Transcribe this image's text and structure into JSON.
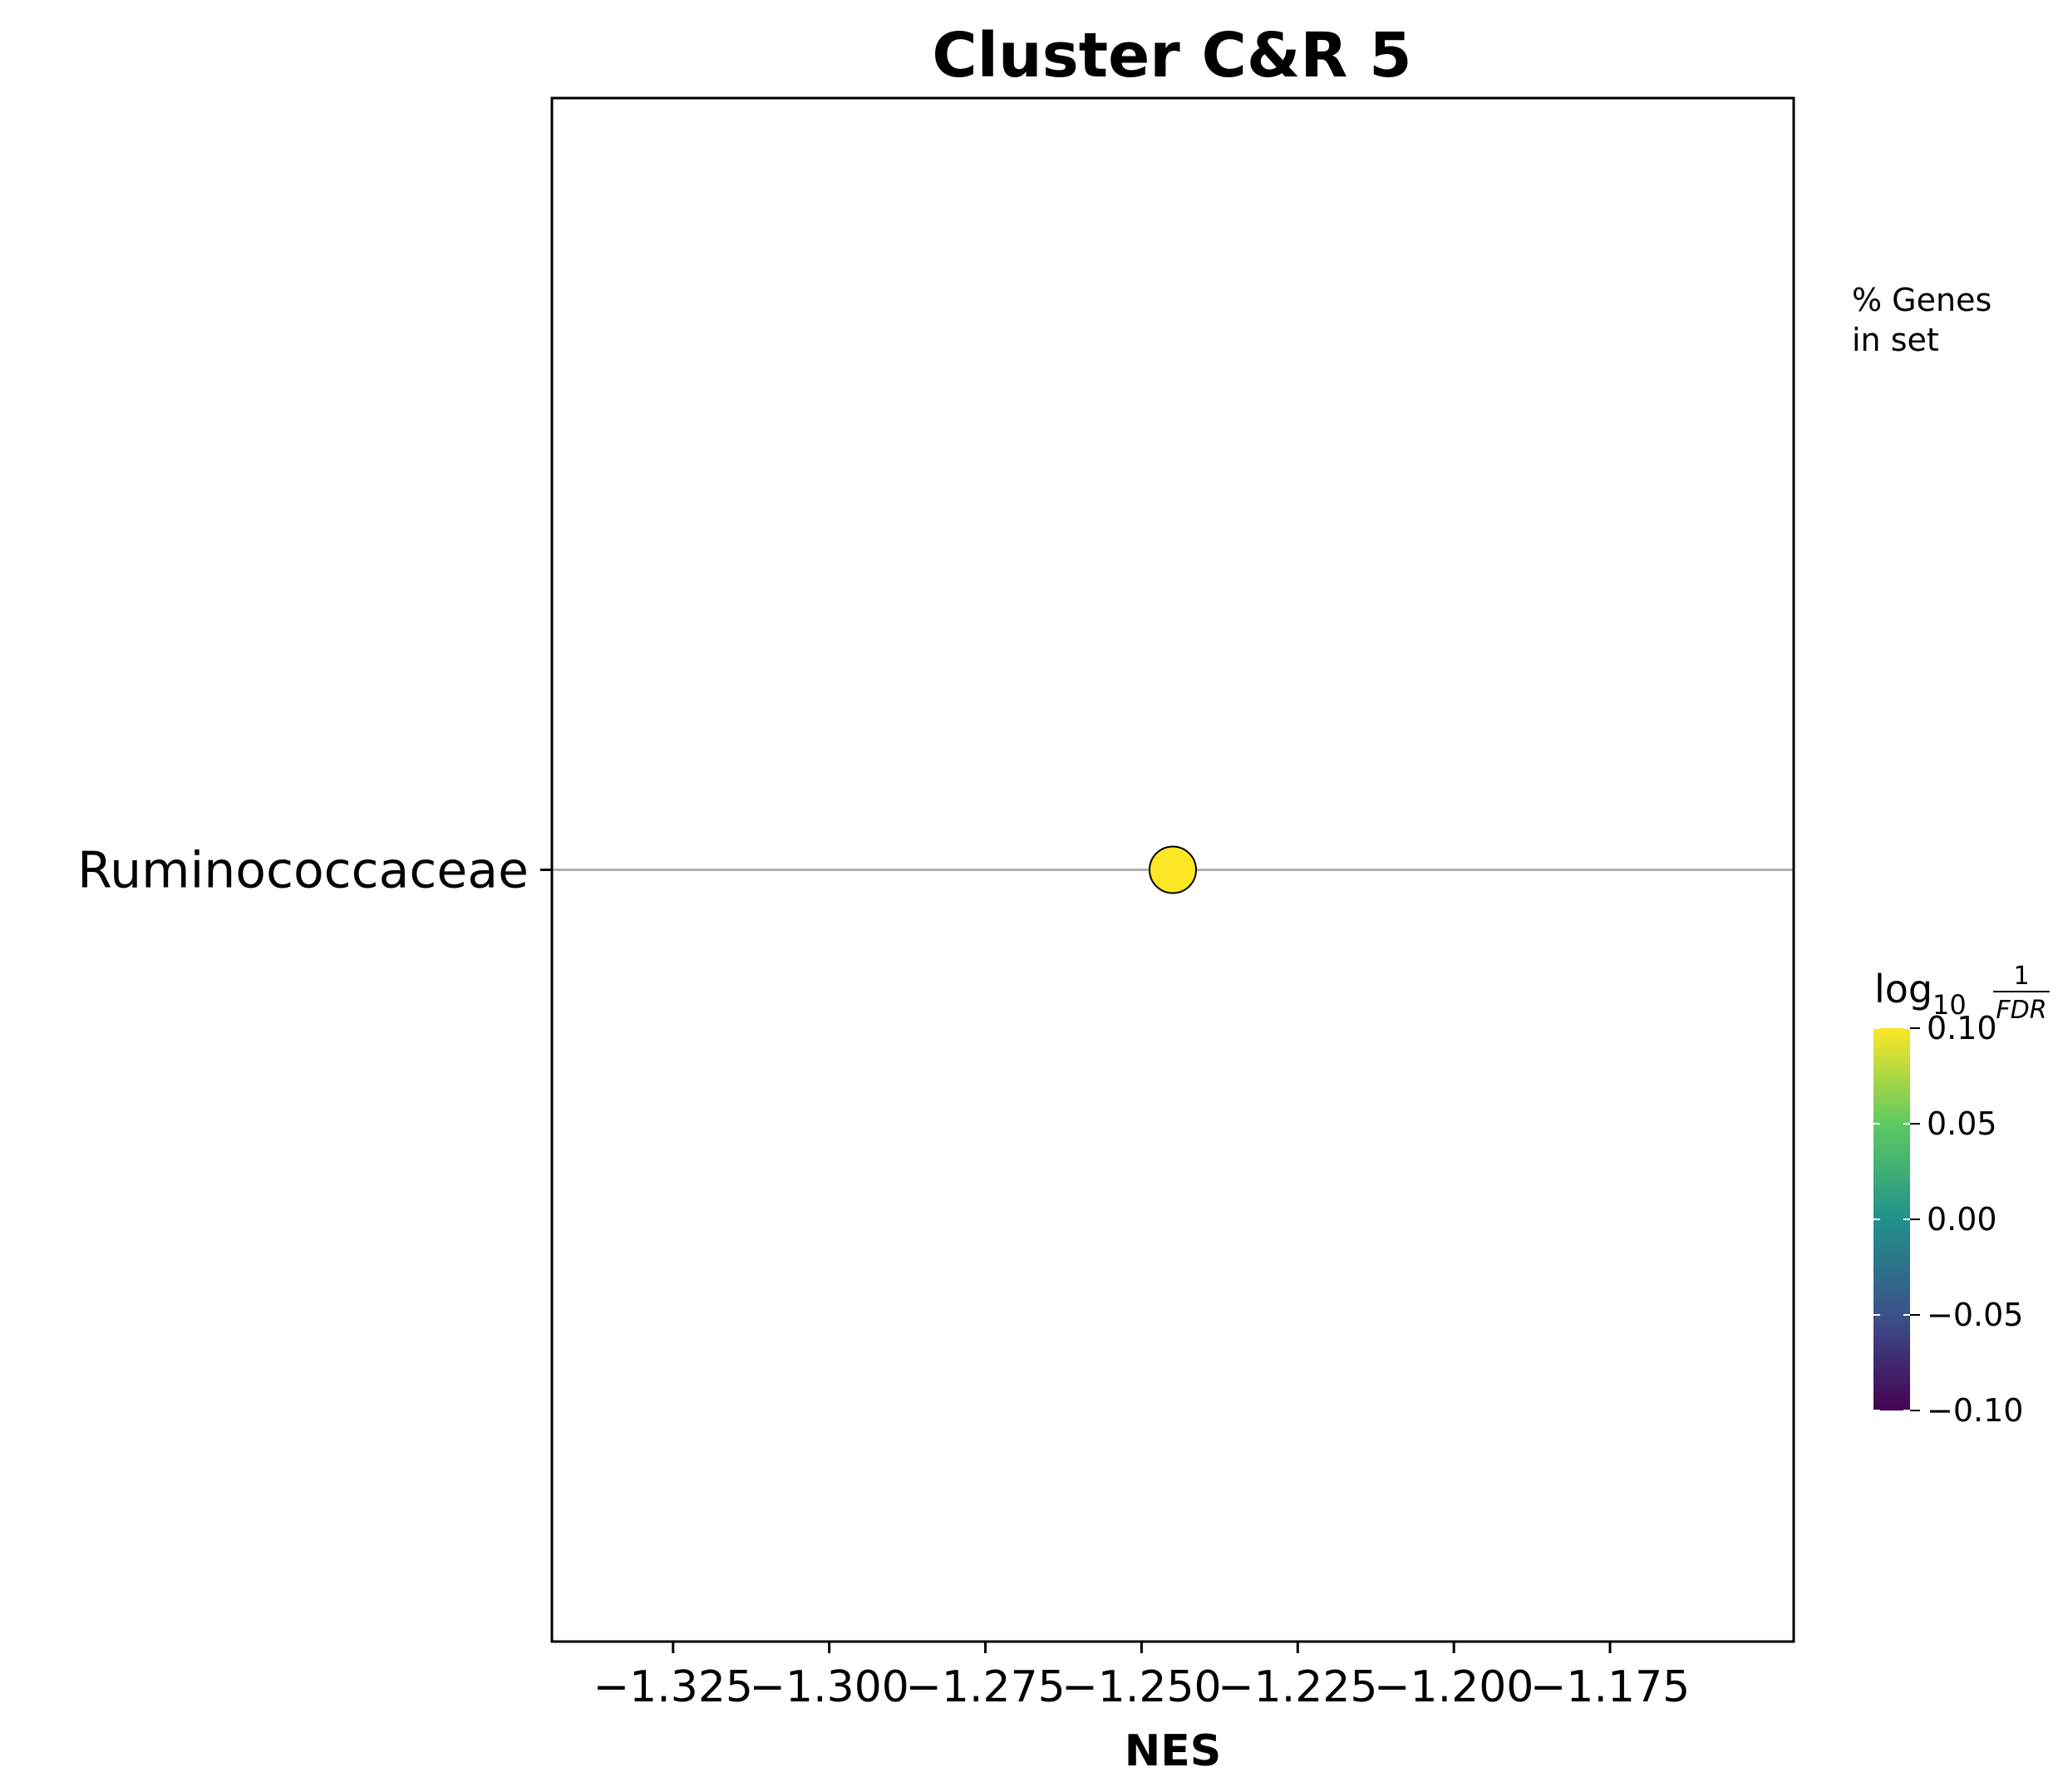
{
  "chart_data": {
    "type": "scatter",
    "title": "Cluster C&R 5",
    "xlabel": "NES",
    "ylabel": "",
    "xlim": [
      -1.3444,
      -1.1456
    ],
    "x_ticks": [
      -1.325,
      -1.3,
      -1.275,
      -1.25,
      -1.225,
      -1.2,
      -1.175
    ],
    "x_tick_labels": [
      "−1.325",
      "−1.300",
      "−1.275",
      "−1.250",
      "−1.225",
      "−1.200",
      "−1.175"
    ],
    "categories": [
      "Ruminococcaceae"
    ],
    "points": [
      {
        "category": "Ruminococcaceae",
        "x": -1.245,
        "color_value": 0.1
      }
    ],
    "grid": "horizontal line at each category",
    "size_legend": {
      "title": "% Genes\nin set"
    },
    "colorbar": {
      "title": "log10 1/FDR",
      "title_main": "log",
      "title_sub": "10",
      "title_num": "1",
      "title_den": "FDR",
      "colormap": "viridis",
      "range": [
        -0.1,
        0.1
      ],
      "ticks": [
        0.1,
        0.05,
        0.0,
        -0.05,
        -0.1
      ],
      "tick_labels": [
        "0.10",
        "0.05",
        "0.00",
        "−0.05",
        "−0.10"
      ]
    },
    "colors": {
      "point_fill": "#fde725",
      "point_edge": "#000000",
      "gridline": "#b0b0b0",
      "viridis_stops": [
        "#440154",
        "#3b528b",
        "#21918c",
        "#5ec962",
        "#fde725"
      ]
    }
  }
}
